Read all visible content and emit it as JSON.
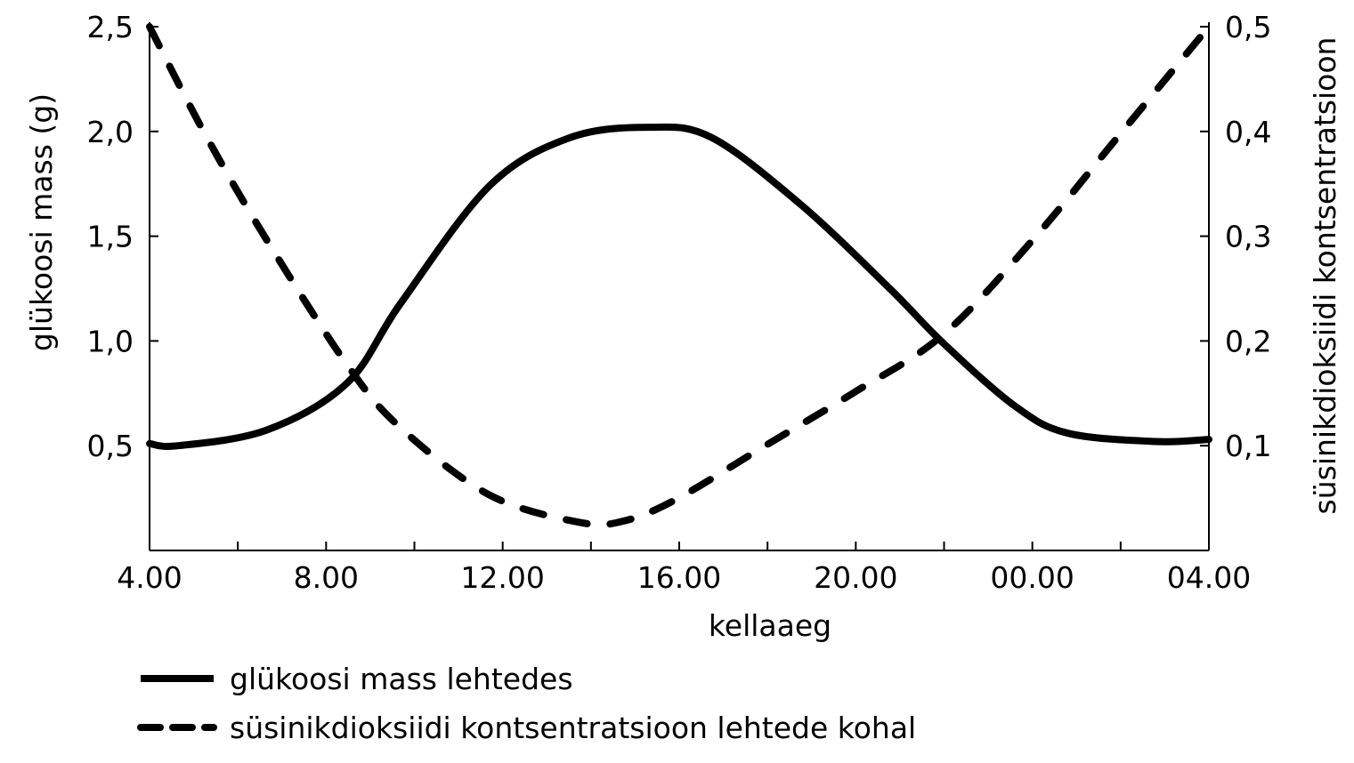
{
  "chart_data": {
    "type": "line",
    "xlabel": "kellaaeg",
    "ylabel_left": "glükoosi mass (g)",
    "ylabel_right": "süsinikdioksiidi kontsentratsioon",
    "x_unit": "hours elapsed since 4.00",
    "xlim": [
      0,
      24
    ],
    "x_ticks": [
      0,
      4,
      8,
      12,
      16,
      20,
      24
    ],
    "x_tick_labels": [
      "4.00",
      "8.00",
      "12.00",
      "16.00",
      "20.00",
      "00.00",
      "04.00"
    ],
    "x_minor_ticks": [
      2,
      6,
      10,
      14,
      18,
      22
    ],
    "ylim_left": [
      0,
      2.5
    ],
    "y_ticks_left": [
      0.5,
      1.0,
      1.5,
      2.0,
      2.5
    ],
    "y_tick_labels_left": [
      "0,5",
      "1,0",
      "1,5",
      "2,0",
      "2,5"
    ],
    "ylim_right": [
      0,
      0.5
    ],
    "y_ticks_right": [
      0.1,
      0.2,
      0.3,
      0.4,
      0.5
    ],
    "y_tick_labels_right": [
      "0,1",
      "0,2",
      "0,3",
      "0,4",
      "0,5"
    ],
    "grid": false,
    "legend_position": "bottom-left",
    "series": [
      {
        "name": "glükoosi mass lehtedes",
        "axis": "left",
        "style": "solid",
        "x": [
          0,
          0.65,
          2.66,
          4.48,
          5.69,
          7.7,
          9.52,
          11.33,
          12.74,
          14.76,
          16.77,
          17.98,
          19.6,
          20.8,
          22.8,
          24
        ],
        "y": [
          0.51,
          0.5,
          0.575,
          0.8,
          1.18,
          1.74,
          1.97,
          2.02,
          1.97,
          1.65,
          1.25,
          0.99,
          0.69,
          0.56,
          0.52,
          0.53
        ]
      },
      {
        "name": "süsinikdioksiidi kontsentratsioon lehtede kohal",
        "axis": "right",
        "style": "dashed",
        "x": [
          0,
          1.25,
          2.66,
          4.48,
          5.69,
          7.7,
          9.72,
          10.73,
          11.94,
          13.95,
          15.97,
          17.98,
          20.0,
          22.0,
          24
        ],
        "y": [
          0.5,
          0.398,
          0.296,
          0.177,
          0.117,
          0.053,
          0.027,
          0.028,
          0.049,
          0.1,
          0.151,
          0.206,
          0.296,
          0.398,
          0.5
        ]
      }
    ]
  }
}
